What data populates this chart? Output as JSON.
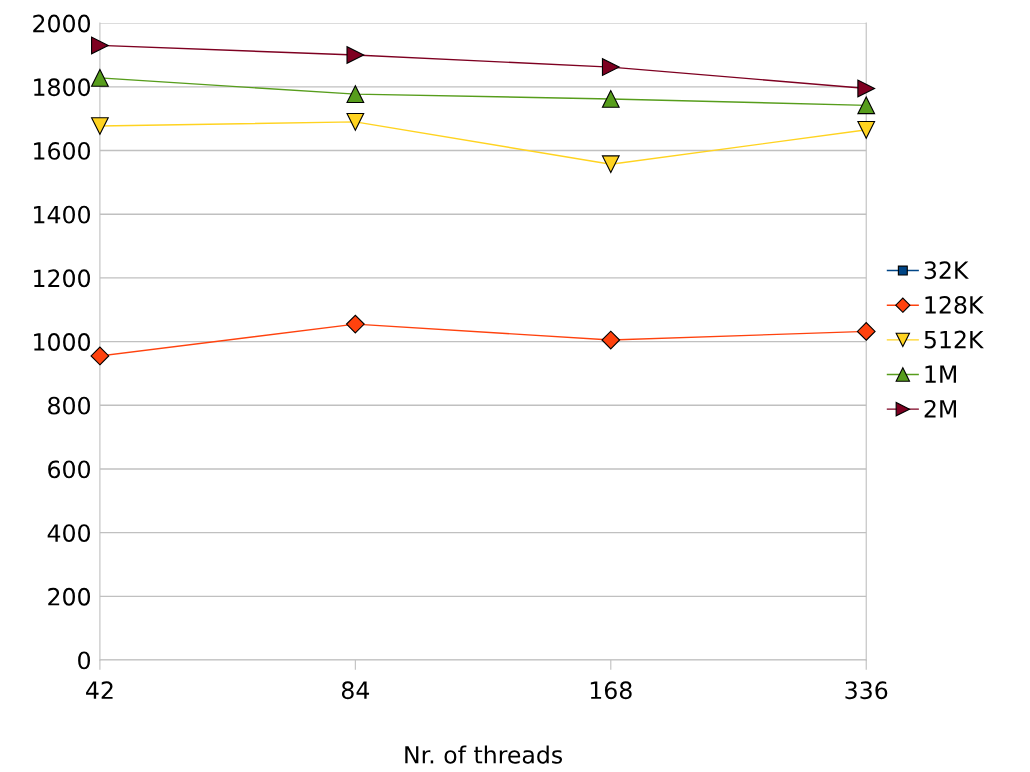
{
  "chart_data": {
    "type": "line",
    "xlabel": "Nr. of threads",
    "categories": [
      "42",
      "84",
      "168",
      "336"
    ],
    "ylim": [
      0,
      2000
    ],
    "yticks": [
      0,
      200,
      400,
      600,
      800,
      1000,
      1200,
      1400,
      1600,
      1800,
      2000
    ],
    "grid": "y",
    "legend": "right",
    "line_style": "solid",
    "series": [
      {
        "name": "32K",
        "color": "#004586",
        "marker": "square",
        "values": [
          null,
          null,
          null,
          null
        ]
      },
      {
        "name": "128K",
        "color": "#ff420e",
        "marker": "diamond",
        "values": [
          955,
          1055,
          1005,
          1032
        ]
      },
      {
        "name": "512K",
        "color": "#ffd320",
        "marker": "triangle-down",
        "values": [
          1677,
          1690,
          1557,
          1665
        ]
      },
      {
        "name": "1M",
        "color": "#579d1c",
        "marker": "triangle",
        "values": [
          1828,
          1777,
          1762,
          1742
        ]
      },
      {
        "name": "2M",
        "color": "#7e0021",
        "marker": "triangle-right",
        "values": [
          1930,
          1900,
          1862,
          1795
        ]
      }
    ]
  }
}
